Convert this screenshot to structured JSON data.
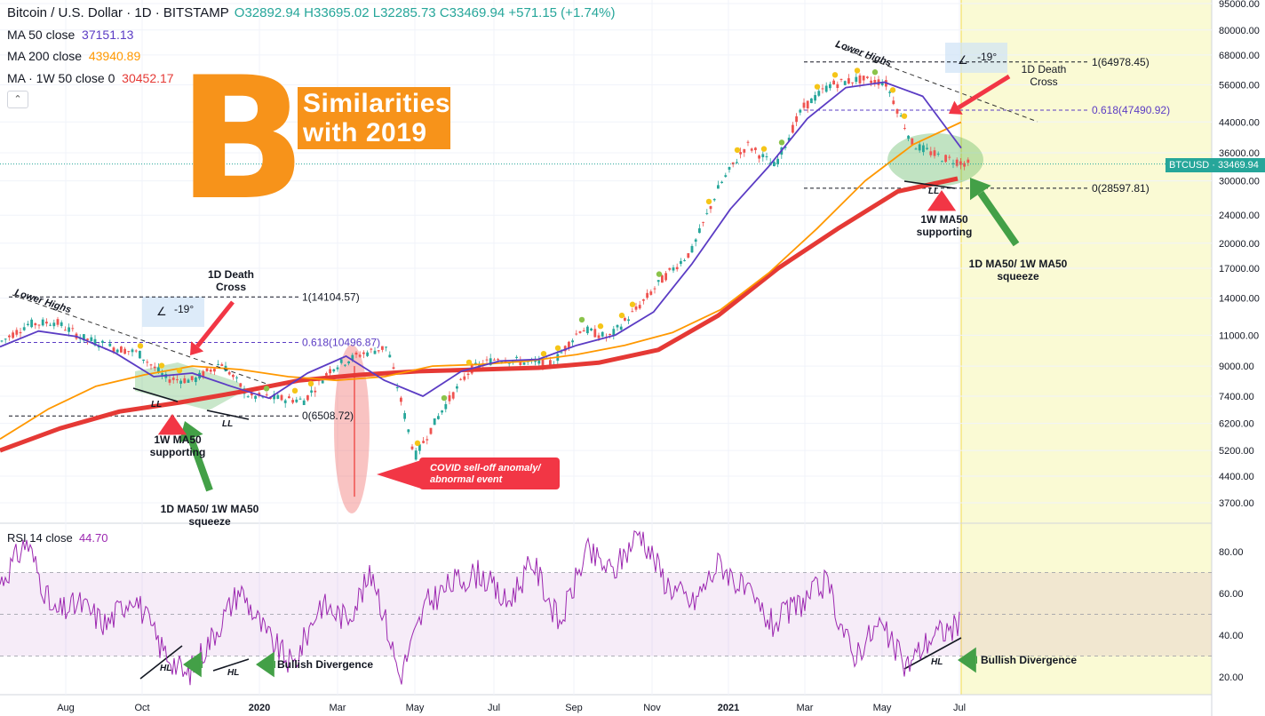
{
  "header": {
    "symbol": "Bitcoin / U.S. Dollar · 1D · BITSTAMP",
    "ohlc": "O32892.94 H33695.02 L32285.73 C33469.94 +571.15 (+1.74%)",
    "ma50_label": "MA 50 close",
    "ma50_value": "37151.13",
    "ma200_label": "MA 200 close",
    "ma200_value": "43940.89",
    "ma1w_label": "MA · 1W 50 close 0",
    "ma1w_value": "30452.17",
    "collapse": "⌃"
  },
  "colors": {
    "ma50": "#5b3cc4",
    "ma200": "#ff9800",
    "ma1w": "#e53935",
    "rsi": "#9c27b0",
    "up": "#26a69a",
    "down": "#ef5350"
  },
  "overlay": {
    "logo": "B",
    "similarities": "Similarities with 2019"
  },
  "rsi_header": {
    "label": "RSI 14 close",
    "value": "44.70"
  },
  "price_tag": {
    "symbol": "BTCUSD",
    "value": "33469.94"
  },
  "annotations": {
    "lower_highs_left": "Lower Highs",
    "lower_highs_right": "Lower Highs",
    "death_cross_left": "1D Death Cross",
    "death_cross_right": "1D Death Cross",
    "angle_left": "-19°",
    "angle_right": "-19°",
    "fib1_left": "1(14104.57)",
    "fib618_left": "0.618(10496.87)",
    "fib0_left": "0(6508.72)",
    "fib1_right": "1(64978.45)",
    "fib618_right": "0.618(47490.92)",
    "fib0_right": "0(28597.81)",
    "ma50_support_left": "1W MA50 supporting",
    "ma50_support_right": "1W MA50 supporting",
    "squeeze_left": "1D MA50/ 1W MA50 squeeze",
    "squeeze_right": "1D MA50/ 1W MA50 squeeze",
    "ll": "LL",
    "hl": "HL",
    "covid": "COVID sell-off anomaly/ abnormal event",
    "bullish_div": "Bullish Divergence"
  },
  "chart_data": {
    "type": "line",
    "title": "Bitcoin / U.S. Dollar · 1D · BITSTAMP",
    "x_ticks": [
      "Aug",
      "Oct",
      "2020",
      "Mar",
      "May",
      "Jul",
      "Sep",
      "Nov",
      "2021",
      "Mar",
      "May",
      "Jul"
    ],
    "y_ticks_price": [
      "95000.00",
      "80000.00",
      "68000.00",
      "56000.00",
      "44000.00",
      "36000.00",
      "30000.00",
      "24000.00",
      "20000.00",
      "17000.00",
      "14000.00",
      "11000.00",
      "9000.00",
      "7400.00",
      "6200.00",
      "5200.00",
      "4400.00",
      "3700.00"
    ],
    "y_scale": "log",
    "y_ticks_rsi": [
      "80.00",
      "60.00",
      "40.00",
      "20.00"
    ],
    "series": [
      {
        "name": "BTCUSD",
        "values": [
          10500,
          11800,
          12000,
          10800,
          10200,
          9800,
          8300,
          8200,
          9200,
          7400,
          7300,
          7200,
          8900,
          9700,
          10200,
          5000,
          6800,
          8800,
          9500,
          9200,
          9200,
          11500,
          10800,
          13000,
          16000,
          19000,
          29000,
          38000,
          33000,
          48000,
          56000,
          58000,
          57000,
          38000,
          35000,
          33500
        ]
      },
      {
        "name": "MA 50",
        "values": [
          10200,
          11300,
          10900,
          9800,
          8400,
          8600,
          7900,
          7300,
          8600,
          9600,
          8200,
          7400,
          8700,
          9300,
          9400,
          10300,
          11000,
          12800,
          17500,
          25000,
          33000,
          45000,
          55000,
          57000,
          52000,
          37151
        ]
      },
      {
        "name": "MA 200",
        "values": [
          5600,
          6800,
          7900,
          8500,
          9000,
          8800,
          8400,
          8200,
          8400,
          9000,
          9100,
          9300,
          9700,
          10300,
          11200,
          13000,
          16500,
          22000,
          30000,
          38000,
          43940
        ]
      },
      {
        "name": "MA 1W 50",
        "values": [
          5200,
          6000,
          6700,
          7100,
          7600,
          8200,
          8500,
          8700,
          8800,
          8900,
          9200,
          10000,
          12500,
          17000,
          22000,
          28000,
          30452
        ]
      },
      {
        "name": "RSI 14",
        "values": [
          65,
          85,
          50,
          55,
          45,
          60,
          35,
          20,
          40,
          62,
          40,
          25,
          55,
          48,
          70,
          20,
          55,
          65,
          70,
          55,
          75,
          45,
          80,
          70,
          90,
          65,
          55,
          75,
          60,
          45,
          55,
          65,
          30,
          45,
          25,
          40,
          44.7
        ]
      }
    ]
  }
}
